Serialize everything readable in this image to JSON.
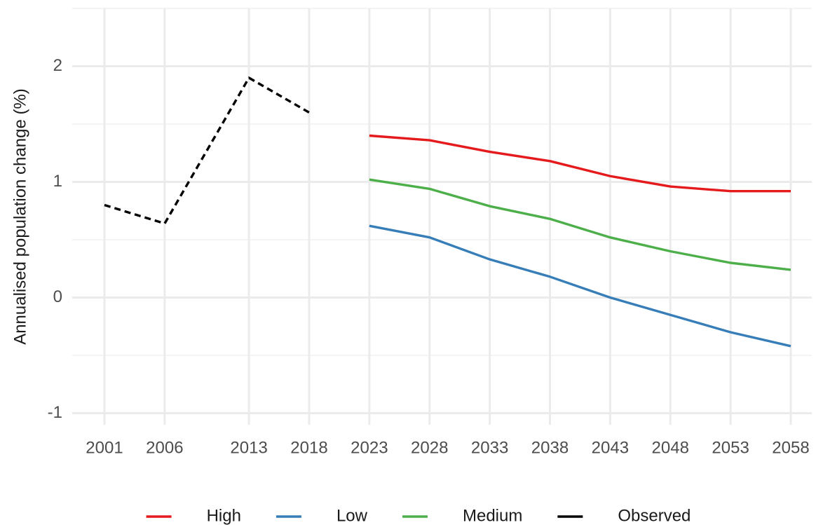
{
  "chart_data": {
    "type": "line",
    "title": "",
    "xlabel": "",
    "ylabel": "Annualised population change (%)",
    "x_ticks": [
      2001,
      2006,
      2013,
      2018,
      2023,
      2028,
      2033,
      2038,
      2043,
      2048,
      2053,
      2058
    ],
    "y_ticks": [
      -1,
      0,
      1,
      2
    ],
    "xlim": [
      2001,
      2058
    ],
    "ylim": [
      -1.1,
      2.5
    ],
    "grid": true,
    "legend_position": "bottom",
    "series": [
      {
        "name": "High",
        "color": "#e41a1c",
        "line_style": "solid",
        "x": [
          2023,
          2028,
          2033,
          2038,
          2043,
          2048,
          2053,
          2058
        ],
        "y": [
          1.4,
          1.36,
          1.26,
          1.18,
          1.05,
          0.96,
          0.92,
          0.92
        ]
      },
      {
        "name": "Low",
        "color": "#377eb8",
        "line_style": "solid",
        "x": [
          2023,
          2028,
          2033,
          2038,
          2043,
          2048,
          2053,
          2058
        ],
        "y": [
          0.62,
          0.52,
          0.33,
          0.18,
          0.0,
          -0.15,
          -0.3,
          -0.42
        ]
      },
      {
        "name": "Medium",
        "color": "#4daf4a",
        "line_style": "solid",
        "x": [
          2023,
          2028,
          2033,
          2038,
          2043,
          2048,
          2053,
          2058
        ],
        "y": [
          1.02,
          0.94,
          0.79,
          0.68,
          0.52,
          0.4,
          0.3,
          0.24
        ]
      },
      {
        "name": "Observed",
        "color": "#000000",
        "line_style": "dashed",
        "x": [
          2001,
          2006,
          2013,
          2018
        ],
        "y": [
          0.8,
          0.64,
          1.9,
          1.6
        ]
      }
    ]
  }
}
